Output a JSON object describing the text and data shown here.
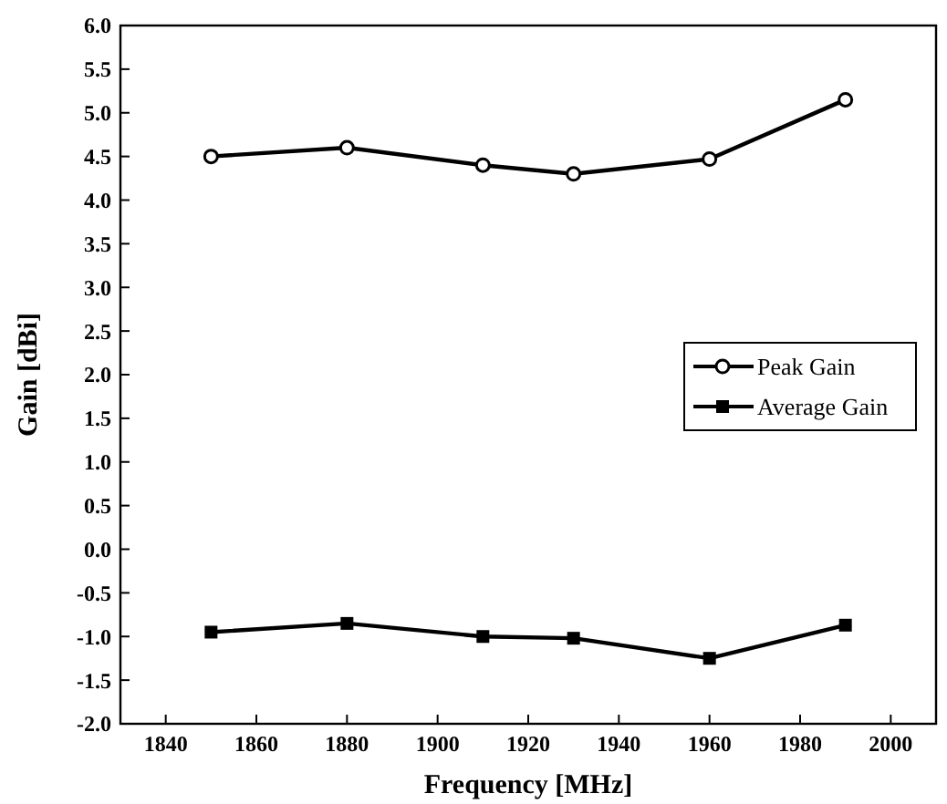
{
  "chart_data": {
    "type": "line",
    "xlabel": "Frequency [MHz]",
    "ylabel": "Gain [dBi]",
    "x": [
      1850,
      1880,
      1910,
      1930,
      1960,
      1990
    ],
    "series": [
      {
        "name": "Peak Gain",
        "color": "#000000",
        "marker": "circle",
        "values": [
          4.5,
          4.6,
          4.4,
          4.3,
          4.47,
          5.15
        ]
      },
      {
        "name": "Average Gain",
        "color": "#000000",
        "marker": "square",
        "values": [
          -0.95,
          -0.85,
          -1.0,
          -1.02,
          -1.25,
          -0.87
        ]
      }
    ],
    "xlim": [
      1830,
      2010
    ],
    "xticks": [
      1840,
      1860,
      1880,
      1900,
      1920,
      1940,
      1960,
      1980,
      2000
    ],
    "ylim": [
      -2,
      6
    ],
    "yticks": [
      {
        "value": -2,
        "label": "-2.0"
      },
      {
        "value": -1.5,
        "label": "-1.5"
      },
      {
        "value": -1,
        "label": "-1.0"
      },
      {
        "value": -0.5,
        "label": "-0.5"
      },
      {
        "value": 0,
        "label": "0.0"
      },
      {
        "value": 0.5,
        "label": "0.5"
      },
      {
        "value": 1,
        "label": "1.0"
      },
      {
        "value": 1.5,
        "label": "1.5"
      },
      {
        "value": 2,
        "label": "2.0"
      },
      {
        "value": 2.5,
        "label": "2.5"
      },
      {
        "value": 3,
        "label": "3.0"
      },
      {
        "value": 3.5,
        "label": "3.5"
      },
      {
        "value": 4,
        "label": "4.0"
      },
      {
        "value": 4.5,
        "label": "4.5"
      },
      {
        "value": 5,
        "label": "5.0"
      },
      {
        "value": 5.5,
        "label": "5.5"
      },
      {
        "value": 6,
        "label": "6.0"
      }
    ],
    "grid": false,
    "legend": "right",
    "line_style": "solid"
  }
}
